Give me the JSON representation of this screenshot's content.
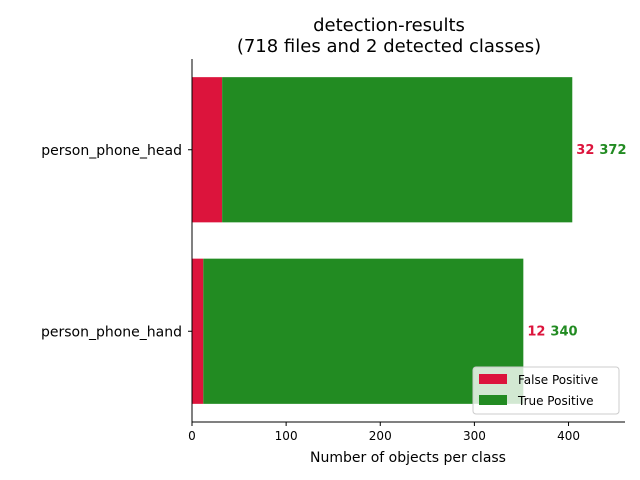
{
  "chart_data": {
    "type": "bar",
    "orientation": "horizontal",
    "stacked": true,
    "title": "detection-results",
    "subtitle": "(718 files and 2 detected classes)",
    "xlabel": "Number of objects per class",
    "ylabel": "",
    "xlim": [
      0,
      460
    ],
    "xticks": [
      "0",
      "100",
      "200",
      "300",
      "400"
    ],
    "categories": [
      "person_phone_head",
      "person_phone_hand"
    ],
    "series": [
      {
        "name": "False Positive",
        "color": "#DC143C",
        "values": [
          32,
          12
        ]
      },
      {
        "name": "True Positive",
        "color": "#228B22",
        "values": [
          372,
          340
        ]
      }
    ],
    "data_labels": [
      {
        "fp": "32",
        "tp": "372"
      },
      {
        "fp": "12",
        "tp": "340"
      }
    ],
    "legend": {
      "position": "lower-right",
      "entries": [
        "False Positive",
        "True Positive"
      ]
    },
    "grid": false
  }
}
